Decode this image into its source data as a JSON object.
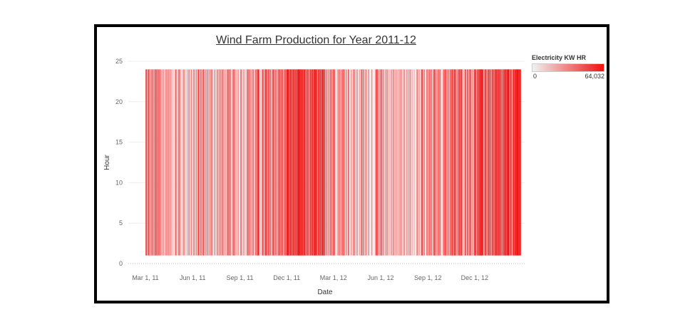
{
  "chart_data": {
    "type": "heatmap",
    "title": "Wind Farm Production for Year 2011-12",
    "xlabel": "Date",
    "ylabel": "Hour",
    "x_range": [
      "2011-03-01",
      "2013-02-28"
    ],
    "x_ticks": [
      "Mar 1, 11",
      "Jun 1, 11",
      "Sep 1, 11",
      "Dec 1, 11",
      "Mar 1, 12",
      "Jun 1, 12",
      "Sep 1, 12",
      "Dec 1, 12"
    ],
    "x_tick_dates": [
      "2011-03-01",
      "2011-06-01",
      "2011-09-01",
      "2011-12-01",
      "2012-03-01",
      "2012-06-01",
      "2012-09-01",
      "2012-12-01"
    ],
    "y_ticks": [
      0,
      5,
      10,
      15,
      20,
      25
    ],
    "ylim": [
      0,
      25
    ],
    "hours": [
      1,
      24
    ],
    "color_legend": {
      "title": "Electricity KW HR",
      "min": 0,
      "max": 64032,
      "min_label": "0",
      "max_label": "64,032",
      "color_low": "#f2f2f2",
      "color_high": "#ee1111"
    },
    "legend_position": "top-right",
    "grid": "horizontal-dotted",
    "monthly_intensity": [
      {
        "month": "2011-03",
        "value": 0.45
      },
      {
        "month": "2011-04",
        "value": 0.3
      },
      {
        "month": "2011-05",
        "value": 0.28
      },
      {
        "month": "2011-06",
        "value": 0.32
      },
      {
        "month": "2011-07",
        "value": 0.3
      },
      {
        "month": "2011-08",
        "value": 0.28
      },
      {
        "month": "2011-09",
        "value": 0.4
      },
      {
        "month": "2011-10",
        "value": 0.45
      },
      {
        "month": "2011-11",
        "value": 0.55
      },
      {
        "month": "2011-12",
        "value": 0.8
      },
      {
        "month": "2012-01",
        "value": 0.72
      },
      {
        "month": "2012-02",
        "value": 0.58
      },
      {
        "month": "2012-03",
        "value": 0.45
      },
      {
        "month": "2012-04",
        "value": 0.3
      },
      {
        "month": "2012-05",
        "value": 0.25
      },
      {
        "month": "2012-06",
        "value": 0.26
      },
      {
        "month": "2012-07",
        "value": 0.24
      },
      {
        "month": "2012-08",
        "value": 0.28
      },
      {
        "month": "2012-09",
        "value": 0.42
      },
      {
        "month": "2012-10",
        "value": 0.5
      },
      {
        "month": "2012-11",
        "value": 0.58
      },
      {
        "month": "2012-12",
        "value": 0.68
      },
      {
        "month": "2013-01",
        "value": 0.62
      },
      {
        "month": "2013-02",
        "value": 0.85
      }
    ]
  }
}
